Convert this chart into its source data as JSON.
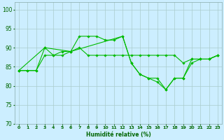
{
  "xlabel": "Humidité relative (%)",
  "background_color": "#cceeff",
  "grid_color": "#aacccc",
  "line_color": "#00bb00",
  "ylim": [
    70,
    102
  ],
  "xlim": [
    -0.5,
    23.5
  ],
  "yticks": [
    70,
    75,
    80,
    85,
    90,
    95,
    100
  ],
  "xticks": [
    0,
    1,
    2,
    3,
    4,
    5,
    6,
    7,
    8,
    9,
    10,
    11,
    12,
    13,
    14,
    15,
    16,
    17,
    18,
    19,
    20,
    21,
    22,
    23
  ],
  "lines": [
    {
      "x": [
        0,
        1,
        2,
        3,
        4,
        5,
        6,
        7,
        8,
        9,
        10,
        11,
        12,
        13,
        14,
        15,
        16,
        17,
        18,
        19,
        20,
        21,
        22,
        23
      ],
      "y": [
        84,
        84,
        84,
        90,
        88,
        88,
        89,
        93,
        93,
        93,
        92,
        92,
        93,
        86,
        83,
        82,
        81,
        79,
        82,
        82,
        87,
        87,
        87,
        88
      ]
    },
    {
      "x": [
        0,
        1,
        2,
        3,
        4,
        5,
        6,
        7,
        8,
        9,
        10,
        11,
        12,
        13,
        14,
        15,
        16,
        17,
        18,
        19,
        20,
        21,
        22,
        23
      ],
      "y": [
        84,
        84,
        84,
        88,
        88,
        89,
        89,
        90,
        88,
        88,
        88,
        88,
        88,
        88,
        88,
        88,
        88,
        88,
        88,
        86,
        87,
        87,
        87,
        88
      ]
    },
    {
      "x": [
        0,
        3,
        6,
        12,
        13,
        14,
        15,
        16,
        17,
        18,
        19,
        20,
        21,
        22,
        23
      ],
      "y": [
        84,
        90,
        89,
        93,
        86,
        83,
        82,
        82,
        79,
        82,
        82,
        86,
        87,
        87,
        88
      ]
    }
  ]
}
